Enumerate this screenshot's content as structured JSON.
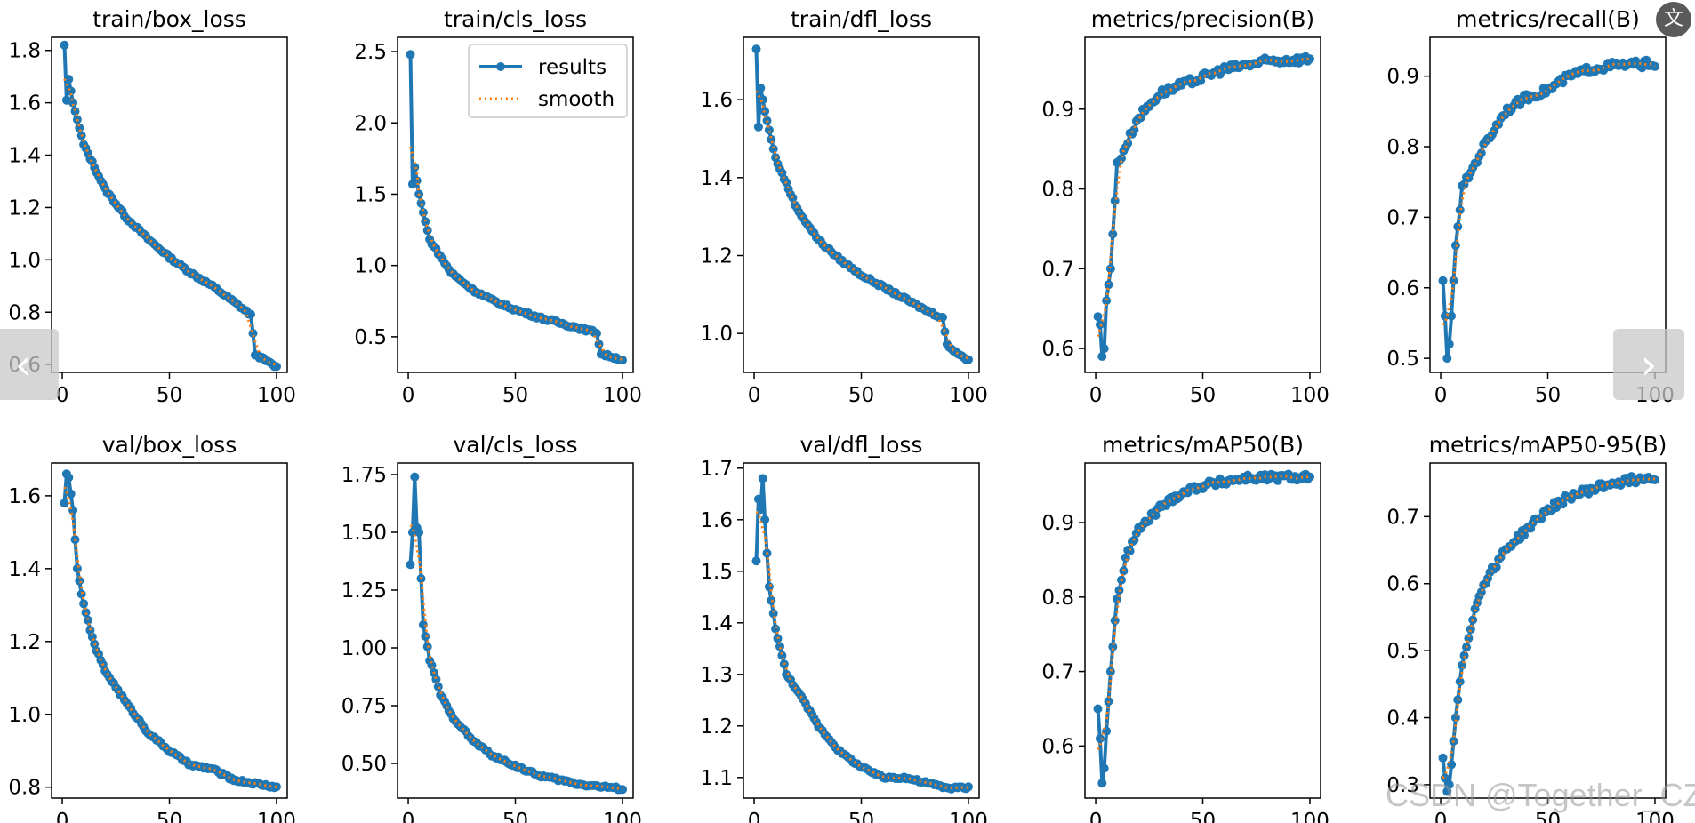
{
  "colors": {
    "results": "#1f77b4",
    "smooth": "#ff7f0e",
    "axis": "#000000"
  },
  "legend": {
    "results_label": "results",
    "smooth_label": "smooth",
    "placement": "upper-right",
    "subplot": 1
  },
  "overlay": {
    "prev_label": "‹",
    "next_label": "›",
    "translate_label": "文",
    "watermark": "CSDN @Together_CZ"
  },
  "chart_data": [
    {
      "type": "line",
      "title": "train/box_loss",
      "xlim": [
        -5,
        105
      ],
      "ylim": [
        0.57,
        1.85
      ],
      "xticks": [
        0,
        50,
        100
      ],
      "yticks": [
        0.6,
        0.8,
        1.0,
        1.2,
        1.4,
        1.6,
        1.8
      ],
      "xtick_labels": [
        "0",
        "50",
        "100"
      ],
      "ytick_labels": [
        "0.6",
        "0.8",
        "1.0",
        "1.2",
        "1.4",
        "1.6",
        "1.8"
      ],
      "curve": {
        "kind": "decay",
        "start": 1.82,
        "knots": [
          [
            2,
            1.61
          ],
          [
            3,
            1.69
          ],
          [
            5,
            1.6
          ],
          [
            10,
            1.44
          ],
          [
            20,
            1.27
          ],
          [
            30,
            1.16
          ],
          [
            40,
            1.08
          ],
          [
            50,
            1.01
          ],
          [
            60,
            0.95
          ],
          [
            70,
            0.9
          ],
          [
            80,
            0.84
          ],
          [
            88,
            0.79
          ],
          [
            90,
            0.64
          ],
          [
            100,
            0.59
          ]
        ]
      }
    },
    {
      "type": "line",
      "title": "train/cls_loss",
      "xlim": [
        -5,
        105
      ],
      "ylim": [
        0.25,
        2.6
      ],
      "xticks": [
        0,
        50,
        100
      ],
      "yticks": [
        0.5,
        1.0,
        1.5,
        2.0,
        2.5
      ],
      "xtick_labels": [
        "0",
        "50",
        "100"
      ],
      "ytick_labels": [
        "0.5",
        "1.0",
        "1.5",
        "2.0",
        "2.5"
      ],
      "curve": {
        "kind": "decay",
        "start": 2.48,
        "knots": [
          [
            2,
            1.57
          ],
          [
            3,
            1.69
          ],
          [
            5,
            1.5
          ],
          [
            10,
            1.18
          ],
          [
            20,
            0.95
          ],
          [
            30,
            0.83
          ],
          [
            40,
            0.75
          ],
          [
            50,
            0.69
          ],
          [
            60,
            0.64
          ],
          [
            70,
            0.6
          ],
          [
            80,
            0.56
          ],
          [
            88,
            0.53
          ],
          [
            90,
            0.38
          ],
          [
            100,
            0.34
          ]
        ]
      }
    },
    {
      "type": "line",
      "title": "train/dfl_loss",
      "xlim": [
        -5,
        105
      ],
      "ylim": [
        0.9,
        1.76
      ],
      "xticks": [
        0,
        50,
        100
      ],
      "yticks": [
        1.0,
        1.2,
        1.4,
        1.6
      ],
      "xtick_labels": [
        "0",
        "50",
        "100"
      ],
      "ytick_labels": [
        "1.0",
        "1.2",
        "1.4",
        "1.6"
      ],
      "curve": {
        "kind": "decay",
        "start": 1.73,
        "knots": [
          [
            2,
            1.53
          ],
          [
            3,
            1.63
          ],
          [
            5,
            1.57
          ],
          [
            10,
            1.45
          ],
          [
            20,
            1.32
          ],
          [
            30,
            1.24
          ],
          [
            40,
            1.19
          ],
          [
            50,
            1.15
          ],
          [
            60,
            1.12
          ],
          [
            70,
            1.09
          ],
          [
            80,
            1.06
          ],
          [
            88,
            1.04
          ],
          [
            90,
            0.97
          ],
          [
            100,
            0.93
          ]
        ]
      }
    },
    {
      "type": "line",
      "title": "metrics/precision(B)",
      "xlim": [
        -5,
        105
      ],
      "ylim": [
        0.57,
        0.99
      ],
      "xticks": [
        0,
        50,
        100
      ],
      "yticks": [
        0.6,
        0.7,
        0.8,
        0.9
      ],
      "xtick_labels": [
        "0",
        "50",
        "100"
      ],
      "ytick_labels": [
        "0.6",
        "0.7",
        "0.8",
        "0.9"
      ],
      "curve": {
        "kind": "rise",
        "start": 0.64,
        "knots": [
          [
            2,
            0.63
          ],
          [
            3,
            0.59
          ],
          [
            4,
            0.6
          ],
          [
            5,
            0.66
          ],
          [
            7,
            0.7
          ],
          [
            10,
            0.83
          ],
          [
            15,
            0.86
          ],
          [
            20,
            0.89
          ],
          [
            30,
            0.92
          ],
          [
            40,
            0.93
          ],
          [
            50,
            0.94
          ],
          [
            60,
            0.95
          ],
          [
            70,
            0.955
          ],
          [
            80,
            0.96
          ],
          [
            100,
            0.963
          ]
        ]
      }
    },
    {
      "type": "line",
      "title": "metrics/recall(B)",
      "xlim": [
        -5,
        105
      ],
      "ylim": [
        0.48,
        0.955
      ],
      "xticks": [
        0,
        50,
        100
      ],
      "yticks": [
        0.5,
        0.6,
        0.7,
        0.8,
        0.9
      ],
      "xtick_labels": [
        "0",
        "50",
        "100"
      ],
      "ytick_labels": [
        "0.5",
        "0.6",
        "0.7",
        "0.8",
        "0.9"
      ],
      "curve": {
        "kind": "rise",
        "start": 0.61,
        "knots": [
          [
            2,
            0.56
          ],
          [
            3,
            0.5
          ],
          [
            4,
            0.52
          ],
          [
            5,
            0.56
          ],
          [
            7,
            0.66
          ],
          [
            10,
            0.74
          ],
          [
            15,
            0.77
          ],
          [
            20,
            0.8
          ],
          [
            30,
            0.85
          ],
          [
            40,
            0.87
          ],
          [
            50,
            0.88
          ],
          [
            60,
            0.9
          ],
          [
            70,
            0.91
          ],
          [
            80,
            0.915
          ],
          [
            100,
            0.918
          ]
        ]
      }
    },
    {
      "type": "line",
      "title": "val/box_loss",
      "xlim": [
        -5,
        105
      ],
      "ylim": [
        0.77,
        1.69
      ],
      "xticks": [
        0,
        50,
        100
      ],
      "yticks": [
        0.8,
        1.0,
        1.2,
        1.4,
        1.6
      ],
      "xtick_labels": [
        "0",
        "50",
        "100"
      ],
      "ytick_labels": [
        "0.8",
        "1.0",
        "1.2",
        "1.4",
        "1.6"
      ],
      "curve": {
        "kind": "decay",
        "start": 1.58,
        "knots": [
          [
            2,
            1.66
          ],
          [
            3,
            1.65
          ],
          [
            5,
            1.56
          ],
          [
            7,
            1.4
          ],
          [
            10,
            1.3
          ],
          [
            15,
            1.19
          ],
          [
            20,
            1.12
          ],
          [
            30,
            1.03
          ],
          [
            40,
            0.95
          ],
          [
            50,
            0.9
          ],
          [
            60,
            0.86
          ],
          [
            70,
            0.85
          ],
          [
            80,
            0.82
          ],
          [
            90,
            0.81
          ],
          [
            100,
            0.8
          ]
        ]
      }
    },
    {
      "type": "line",
      "title": "val/cls_loss",
      "xlim": [
        -5,
        105
      ],
      "ylim": [
        0.35,
        1.8
      ],
      "xticks": [
        0,
        50,
        100
      ],
      "yticks": [
        0.5,
        0.75,
        1.0,
        1.25,
        1.5,
        1.75
      ],
      "xtick_labels": [
        "0",
        "50",
        "100"
      ],
      "ytick_labels": [
        "0.50",
        "0.75",
        "1.00",
        "1.25",
        "1.50",
        "1.75"
      ],
      "curve": {
        "kind": "decay",
        "start": 1.36,
        "knots": [
          [
            2,
            1.5
          ],
          [
            3,
            1.74
          ],
          [
            4,
            1.52
          ],
          [
            5,
            1.5
          ],
          [
            7,
            1.1
          ],
          [
            10,
            0.95
          ],
          [
            15,
            0.8
          ],
          [
            20,
            0.71
          ],
          [
            30,
            0.6
          ],
          [
            40,
            0.53
          ],
          [
            50,
            0.49
          ],
          [
            60,
            0.45
          ],
          [
            70,
            0.43
          ],
          [
            80,
            0.41
          ],
          [
            90,
            0.4
          ],
          [
            100,
            0.39
          ]
        ]
      }
    },
    {
      "type": "line",
      "title": "val/dfl_loss",
      "xlim": [
        -5,
        105
      ],
      "ylim": [
        1.06,
        1.71
      ],
      "xticks": [
        0,
        50,
        100
      ],
      "yticks": [
        1.1,
        1.2,
        1.3,
        1.4,
        1.5,
        1.6,
        1.7
      ],
      "xtick_labels": [
        "0",
        "50",
        "100"
      ],
      "ytick_labels": [
        "1.1",
        "1.2",
        "1.3",
        "1.4",
        "1.5",
        "1.6",
        "1.7"
      ],
      "curve": {
        "kind": "decay",
        "start": 1.52,
        "knots": [
          [
            2,
            1.64
          ],
          [
            3,
            1.62
          ],
          [
            4,
            1.68
          ],
          [
            5,
            1.6
          ],
          [
            7,
            1.47
          ],
          [
            10,
            1.39
          ],
          [
            15,
            1.3
          ],
          [
            20,
            1.27
          ],
          [
            30,
            1.2
          ],
          [
            40,
            1.15
          ],
          [
            50,
            1.12
          ],
          [
            60,
            1.1
          ],
          [
            70,
            1.1
          ],
          [
            80,
            1.09
          ],
          [
            90,
            1.08
          ],
          [
            100,
            1.08
          ]
        ]
      }
    },
    {
      "type": "line",
      "title": "metrics/mAP50(B)",
      "xlim": [
        -5,
        105
      ],
      "ylim": [
        0.53,
        0.98
      ],
      "xticks": [
        0,
        50,
        100
      ],
      "yticks": [
        0.6,
        0.7,
        0.8,
        0.9
      ],
      "xtick_labels": [
        "0",
        "50",
        "100"
      ],
      "ytick_labels": [
        "0.6",
        "0.7",
        "0.8",
        "0.9"
      ],
      "curve": {
        "kind": "rise",
        "start": 0.65,
        "knots": [
          [
            2,
            0.61
          ],
          [
            3,
            0.55
          ],
          [
            4,
            0.57
          ],
          [
            5,
            0.62
          ],
          [
            7,
            0.7
          ],
          [
            10,
            0.8
          ],
          [
            15,
            0.86
          ],
          [
            20,
            0.89
          ],
          [
            30,
            0.92
          ],
          [
            40,
            0.94
          ],
          [
            50,
            0.95
          ],
          [
            60,
            0.955
          ],
          [
            70,
            0.96
          ],
          [
            80,
            0.96
          ],
          [
            100,
            0.962
          ]
        ]
      }
    },
    {
      "type": "line",
      "title": "metrics/mAP50-95(B)",
      "xlim": [
        -5,
        105
      ],
      "ylim": [
        0.28,
        0.78
      ],
      "xticks": [
        0,
        50,
        100
      ],
      "yticks": [
        0.3,
        0.4,
        0.5,
        0.6,
        0.7
      ],
      "xtick_labels": [
        "0",
        "50",
        "100"
      ],
      "ytick_labels": [
        "0.3",
        "0.4",
        "0.5",
        "0.6",
        "0.7"
      ],
      "curve": {
        "kind": "rise",
        "start": 0.34,
        "knots": [
          [
            2,
            0.31
          ],
          [
            3,
            0.29
          ],
          [
            4,
            0.3
          ],
          [
            5,
            0.33
          ],
          [
            7,
            0.4
          ],
          [
            10,
            0.48
          ],
          [
            15,
            0.55
          ],
          [
            20,
            0.6
          ],
          [
            30,
            0.65
          ],
          [
            40,
            0.68
          ],
          [
            50,
            0.71
          ],
          [
            60,
            0.73
          ],
          [
            70,
            0.74
          ],
          [
            80,
            0.75
          ],
          [
            100,
            0.76
          ]
        ]
      }
    }
  ]
}
